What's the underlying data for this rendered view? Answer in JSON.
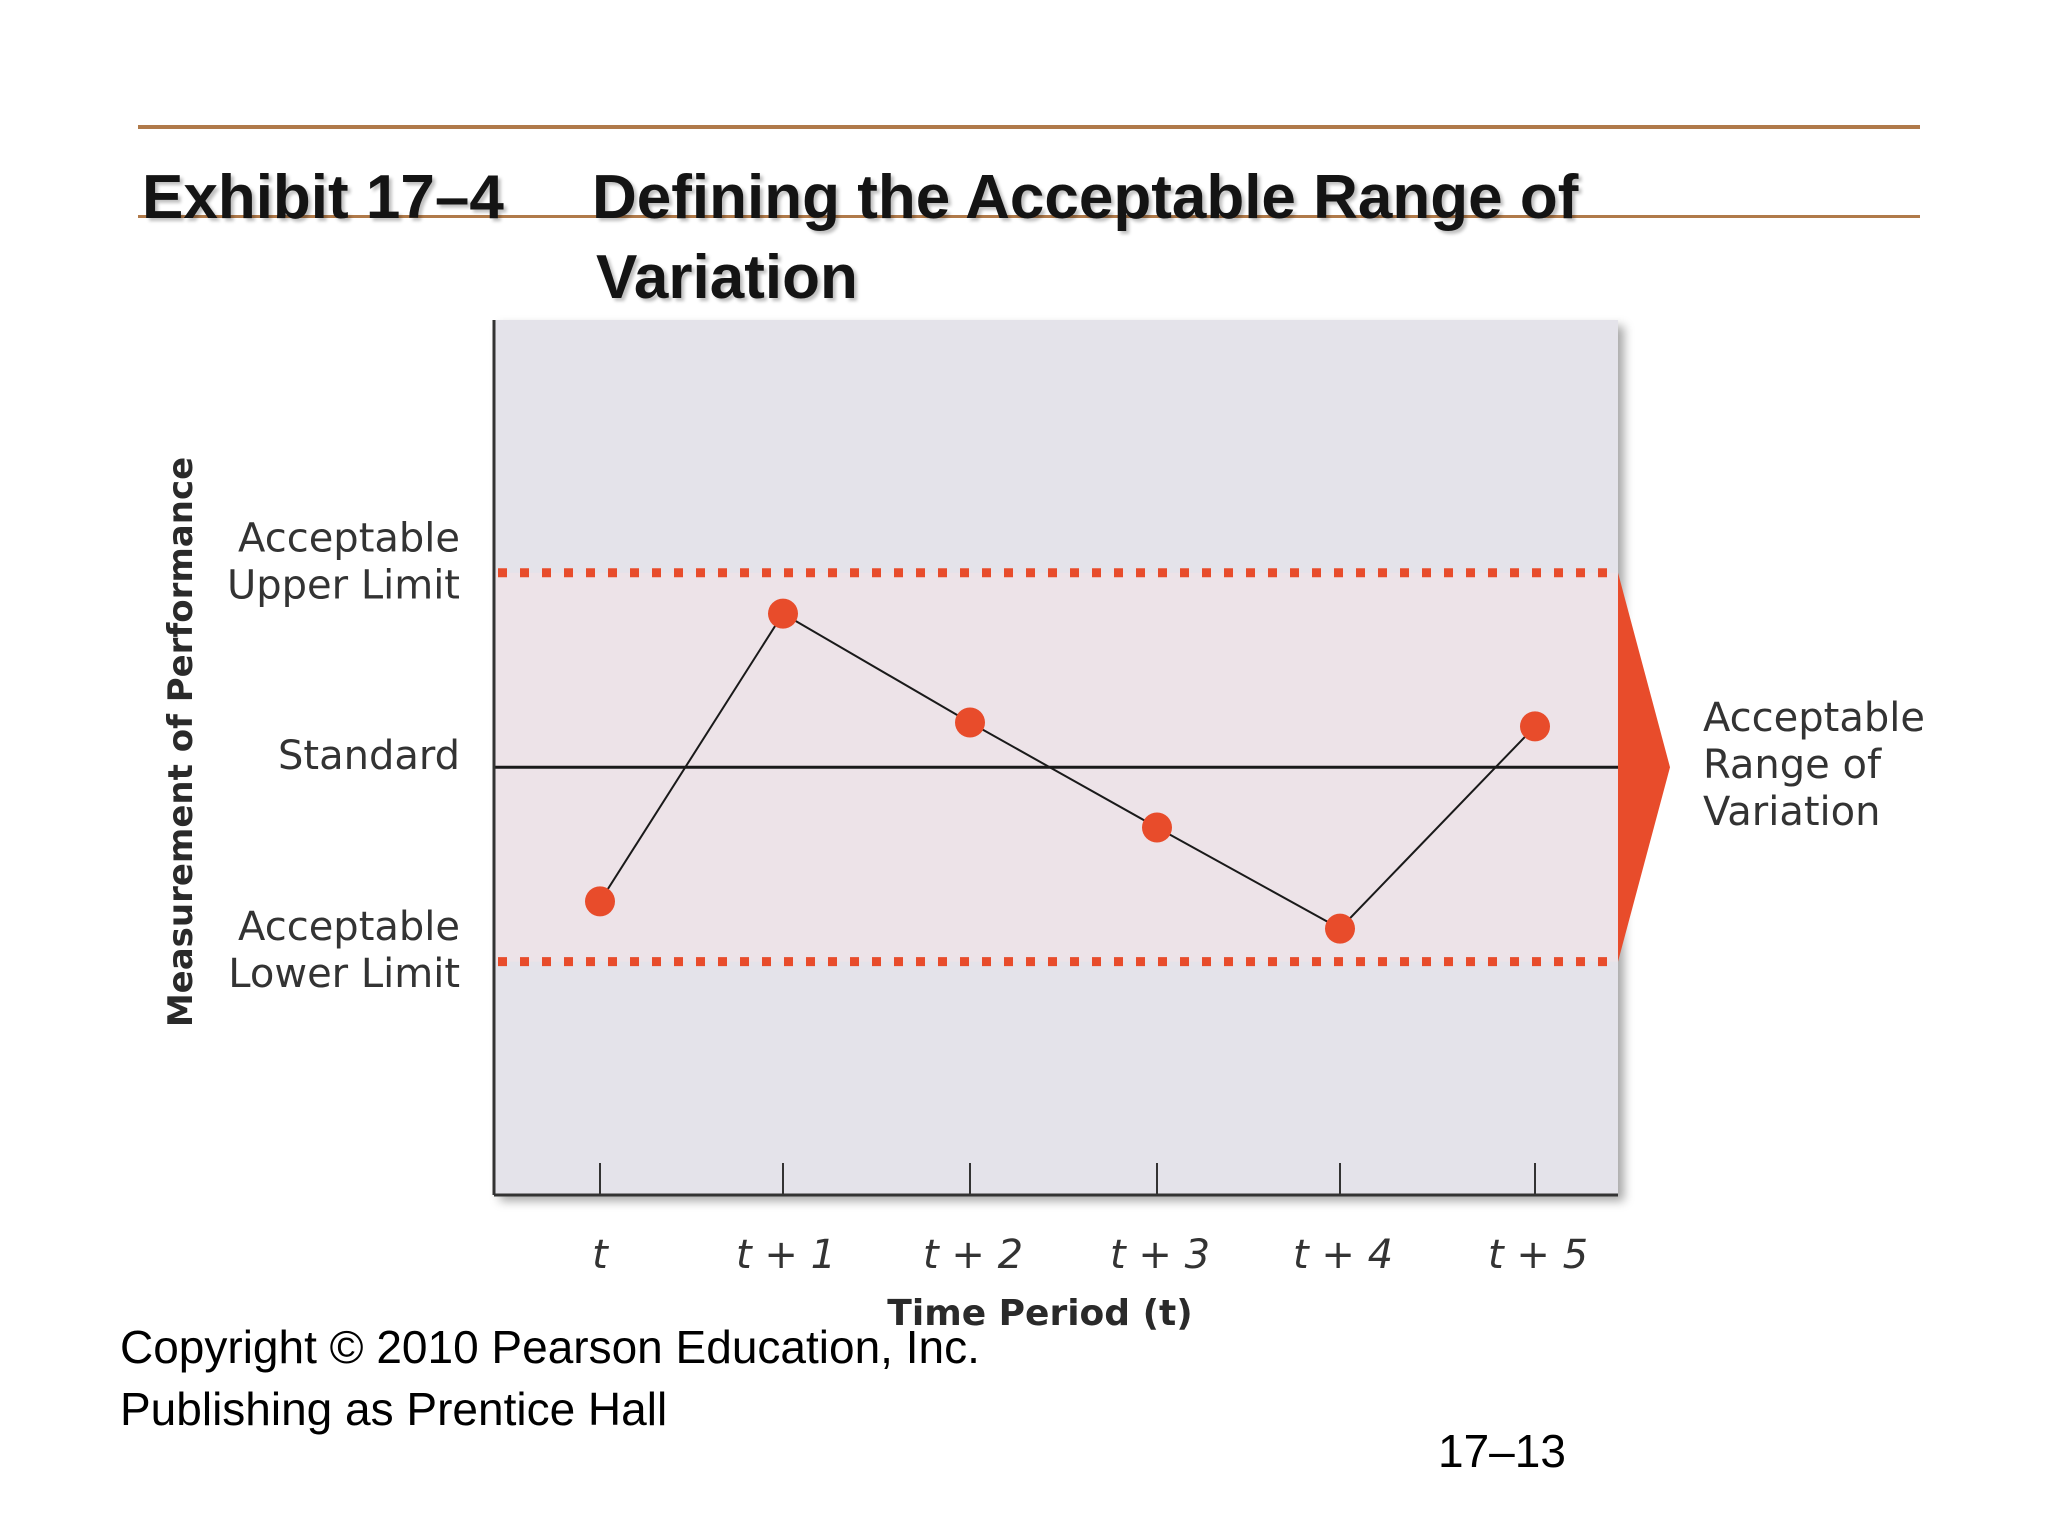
{
  "slide": {
    "exhibit_number": "Exhibit 17–4",
    "title_line1": "Defining the Acceptable Range of",
    "title_line2": "Variation",
    "copyright_line1": "Copyright © 2010 Pearson Education, Inc.",
    "copyright_line2": "Publishing as Prentice Hall",
    "page_number": "17–13"
  },
  "colors": {
    "rule": "#b07a4a",
    "point": "#e84c2b",
    "limit_line": "#e84c2b",
    "range_arrow": "#e84c2b",
    "plot_background": "#e4e3ea",
    "band_background": "#ede3e8"
  },
  "chart_data": {
    "type": "line",
    "xlabel": "Time Period (t)",
    "ylabel": "Measurement of Performance",
    "categories": [
      "t",
      "t + 1",
      "t + 2",
      "t + 3",
      "t + 4",
      "t + 5"
    ],
    "y_scale": "relative deviation from standard; upper limit = 1, standard = 0, lower limit = -1",
    "ylim": [
      -2.2,
      2.3
    ],
    "series": [
      {
        "values": [
          -0.69,
          0.79,
          0.23,
          -0.31,
          -0.83,
          0.21
        ]
      }
    ],
    "reference_lines": [
      {
        "label_line1": "Acceptable",
        "label_line2": "Upper Limit",
        "value": 1,
        "style": "dotted"
      },
      {
        "label_line1": "Standard",
        "label_line2": "",
        "value": 0,
        "style": "solid"
      },
      {
        "label_line1": "Acceptable",
        "label_line2": "Lower Limit",
        "value": -1,
        "style": "dotted"
      }
    ],
    "range_annotation": {
      "lines": [
        "Acceptable",
        "Range of",
        "Variation"
      ],
      "from": -1,
      "to": 1
    },
    "grid": false,
    "legend": "none"
  }
}
